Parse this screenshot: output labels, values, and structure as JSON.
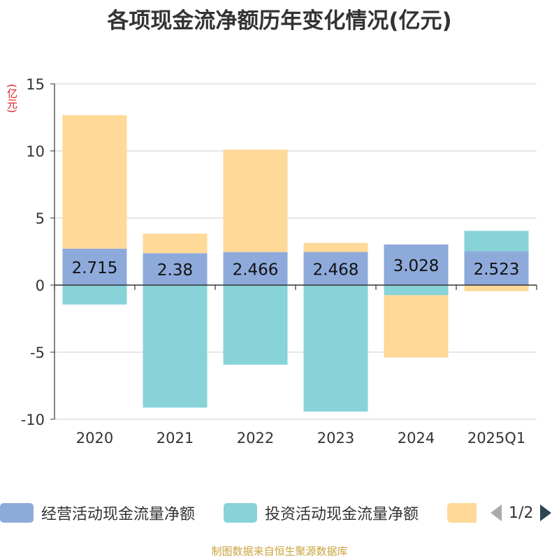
{
  "title": "各项现金流净额历年变化情况(亿元)",
  "unit_label": "(亿元)",
  "source": "制图数据来自恒生聚源数据库",
  "legend": {
    "items": [
      {
        "label": "经营活动现金流量净额",
        "color": "#8eaadb"
      },
      {
        "label": "投资活动现金流量净额",
        "color": "#87d3d8"
      },
      {
        "label": "",
        "color": "#fed998"
      }
    ],
    "page": "1/2"
  },
  "chart_data": {
    "type": "bar",
    "stacked": true,
    "categories": [
      "2020",
      "2021",
      "2022",
      "2023",
      "2024",
      "2025Q1"
    ],
    "ylim": [
      -10,
      15
    ],
    "yticks": [
      -10,
      -5,
      0,
      5,
      10,
      15
    ],
    "series": [
      {
        "name": "经营活动现金流量净额",
        "color": "#8eaadb",
        "values": [
          2.715,
          2.38,
          2.466,
          2.468,
          3.028,
          2.523
        ],
        "labels": [
          "2.715",
          "2.38",
          "2.466",
          "2.468",
          "3.028",
          "2.523"
        ]
      },
      {
        "name": "投资活动现金流量净额",
        "color": "#87d3d8",
        "values": [
          -1.45,
          -9.13,
          -5.93,
          -9.43,
          -0.75,
          1.52
        ]
      },
      {
        "name": "",
        "color": "#fed998",
        "values": [
          9.95,
          1.45,
          7.63,
          0.67,
          -4.65,
          -0.45
        ]
      }
    ],
    "grid": true
  }
}
